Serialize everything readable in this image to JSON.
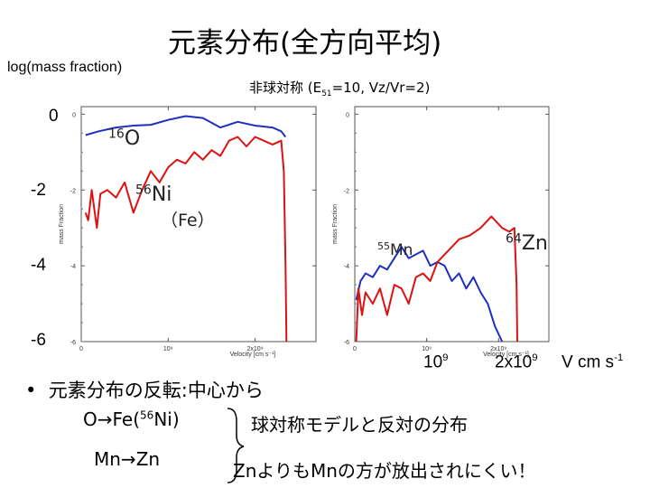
{
  "slide": {
    "title": "元素分布(全方向平均)",
    "y_axis_label": "log(mass fraction)",
    "subtitle_prefix": "非球対称 (E",
    "subtitle_sub": "51",
    "subtitle_suffix": "=10, Vz/Vr=2)",
    "big_yticks": [
      "0",
      "-2",
      "-4",
      "-6"
    ],
    "big_xticks": {
      "t1_base": "10",
      "t1_exp": "9",
      "t2_base": "2x10",
      "t2_exp": "9",
      "unit_base": "V cm s",
      "unit_exp": "-1"
    },
    "bullets": {
      "marker": "•",
      "line1": "元素分布の反転:中心から",
      "line2_pre": "O→Fe(",
      "line2_sup": "56",
      "line2_post": "Ni)",
      "line2_right": "球対称モデルと反対の分布",
      "line3_left": "Mn→Zn",
      "line3_right": "Znよりも",
      "line3_right2": "Mnの方が放出されにくい！"
    }
  },
  "chart_data": [
    {
      "type": "line",
      "xlabel": "Velocity [cm s⁻¹]",
      "ylabel": "mass Fraction",
      "xlim": [
        0,
        2700000000.0
      ],
      "ylim": [
        -6,
        0.2
      ],
      "yticks": [
        "0",
        "-2",
        "-4",
        "-6"
      ],
      "xticks": [
        "0",
        "10⁹",
        "2x10⁹"
      ],
      "annotations": [
        {
          "text": "16O",
          "sup": "16",
          "label": "O"
        },
        {
          "text": "56Ni (Fe)",
          "sup": "56",
          "label": "Ni",
          "line2": "（Fe）"
        }
      ],
      "series": [
        {
          "name": "O",
          "color": "#1f2fbf",
          "x": [
            50000000.0,
            200000000.0,
            400000000.0,
            600000000.0,
            800000000.0,
            1000000000.0,
            1200000000.0,
            1400000000.0,
            1600000000.0,
            1800000000.0,
            2000000000.0,
            2200000000.0,
            2300000000.0,
            2350000000.0
          ],
          "y": [
            -0.55,
            -0.45,
            -0.35,
            -0.3,
            -0.28,
            -0.15,
            -0.05,
            -0.1,
            -0.35,
            -0.2,
            -0.3,
            -0.35,
            -0.45,
            -0.6
          ]
        },
        {
          "name": "Ni",
          "color": "#dd1111",
          "x": [
            50000000.0,
            80000000.0,
            120000000.0,
            180000000.0,
            220000000.0,
            300000000.0,
            400000000.0,
            500000000.0,
            600000000.0,
            700000000.0,
            800000000.0,
            900000000.0,
            1000000000.0,
            1100000000.0,
            1200000000.0,
            1300000000.0,
            1400000000.0,
            1500000000.0,
            1600000000.0,
            1700000000.0,
            1800000000.0,
            1900000000.0,
            2000000000.0,
            2100000000.0,
            2200000000.0,
            2300000000.0,
            2330000000.0,
            2350000000.0,
            2360000000.0
          ],
          "y": [
            -2.6,
            -2.8,
            -2.0,
            -3.0,
            -2.1,
            -2.0,
            -2.2,
            -1.8,
            -2.6,
            -2.0,
            -1.5,
            -1.8,
            -1.4,
            -1.2,
            -1.3,
            -1.0,
            -1.2,
            -0.95,
            -1.1,
            -0.7,
            -0.6,
            -0.85,
            -0.6,
            -0.7,
            -0.8,
            -0.7,
            -1.5,
            -4.0,
            -6.0
          ]
        }
      ]
    },
    {
      "type": "line",
      "xlabel": "Velocity [cm s⁻¹]",
      "ylabel": "mass Fraction",
      "xlim": [
        0,
        2700000000.0
      ],
      "ylim": [
        -6,
        0.2
      ],
      "yticks": [
        "0",
        "-2",
        "-4",
        "-6"
      ],
      "xticks": [
        "0",
        "10⁹",
        "2x10⁹"
      ],
      "annotations": [
        {
          "text": "55Mn",
          "sup": "55",
          "label": "Mn"
        },
        {
          "text": "64Zn",
          "sup": "64",
          "label": "Zn"
        }
      ],
      "series": [
        {
          "name": "Mn",
          "color": "#1f2fbf",
          "x": [
            20000000.0,
            80000000.0,
            150000000.0,
            250000000.0,
            350000000.0,
            450000000.0,
            550000000.0,
            650000000.0,
            750000000.0,
            850000000.0,
            950000000.0,
            1050000000.0,
            1150000000.0,
            1250000000.0,
            1350000000.0,
            1450000000.0,
            1550000000.0,
            1650000000.0,
            1750000000.0,
            1850000000.0,
            1950000000.0,
            2050000000.0
          ],
          "y": [
            -4.9,
            -4.4,
            -4.2,
            -4.3,
            -4.0,
            -4.1,
            -3.8,
            -3.5,
            -3.8,
            -3.7,
            -3.6,
            -4.0,
            -3.9,
            -4.0,
            -4.4,
            -4.2,
            -4.6,
            -4.3,
            -4.7,
            -5.0,
            -5.6,
            -6.0
          ]
        },
        {
          "name": "Zn",
          "color": "#dd1111",
          "x": [
            20000000.0,
            50000000.0,
            100000000.0,
            150000000.0,
            250000000.0,
            350000000.0,
            450000000.0,
            550000000.0,
            650000000.0,
            750000000.0,
            850000000.0,
            950000000.0,
            1050000000.0,
            1150000000.0,
            1300000000.0,
            1450000000.0,
            1600000000.0,
            1750000000.0,
            1900000000.0,
            2050000000.0,
            2150000000.0,
            2220000000.0,
            2250000000.0,
            2260000000.0
          ],
          "y": [
            -6.0,
            -4.6,
            -5.3,
            -4.7,
            -5.0,
            -4.6,
            -5.3,
            -4.5,
            -4.6,
            -5.0,
            -4.3,
            -4.2,
            -4.4,
            -3.9,
            -3.6,
            -3.3,
            -3.2,
            -3.0,
            -2.7,
            -3.0,
            -3.1,
            -3.0,
            -4.5,
            -6.0
          ]
        }
      ]
    }
  ]
}
